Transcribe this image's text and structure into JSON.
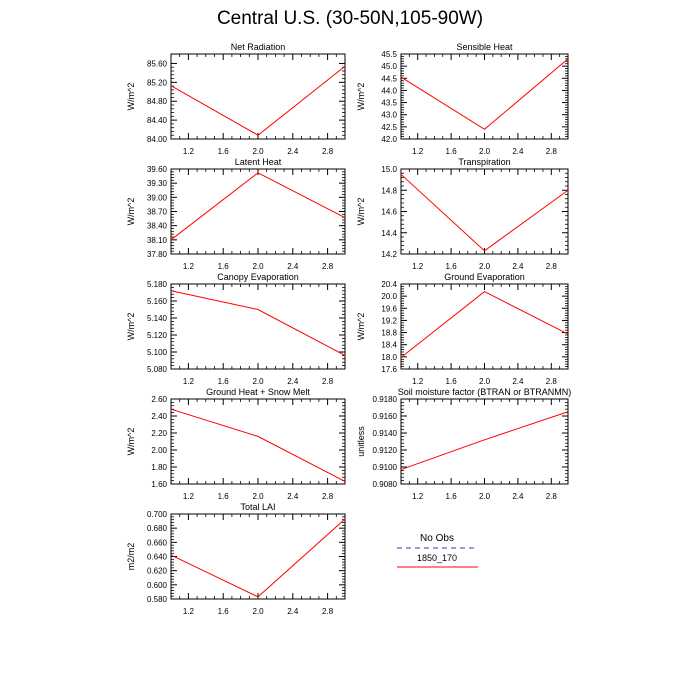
{
  "title": "Central U.S. (30-50N,105-90W)",
  "colors": {
    "model_line": "#ff0000",
    "obs_line": "#9999ee",
    "axis": "#000000"
  },
  "legend": {
    "obs_label": "No Obs",
    "model_label": "1850_170"
  },
  "chart_data": [
    {
      "type": "line",
      "title": "Net Radiation",
      "ylabel": "W/m^2",
      "x": [
        1,
        2,
        3
      ],
      "xticks": [
        "1.2",
        "1.6",
        "2.0",
        "2.4",
        "2.8"
      ],
      "xlim": [
        1,
        3
      ],
      "yticks": [
        "84.00",
        "84.40",
        "84.80",
        "85.20",
        "85.60"
      ],
      "ylim": [
        84.0,
        85.8
      ],
      "series": [
        {
          "values": [
            85.13,
            84.08,
            85.54
          ]
        }
      ]
    },
    {
      "type": "line",
      "title": "Sensible Heat",
      "ylabel": "W/m^2",
      "x": [
        1,
        2,
        3
      ],
      "xticks": [
        "1.2",
        "1.6",
        "2.0",
        "2.4",
        "2.8"
      ],
      "xlim": [
        1,
        3
      ],
      "yticks": [
        "42.0",
        "42.5",
        "43.0",
        "43.5",
        "44.0",
        "44.5",
        "45.0",
        "45.5"
      ],
      "ylim": [
        42.0,
        45.5
      ],
      "series": [
        {
          "values": [
            44.55,
            42.4,
            45.3
          ]
        }
      ]
    },
    {
      "type": "line",
      "title": "Latent Heat",
      "ylabel": "W/m^2",
      "x": [
        1,
        2,
        3
      ],
      "xticks": [
        "1.2",
        "1.6",
        "2.0",
        "2.4",
        "2.8"
      ],
      "xlim": [
        1,
        3
      ],
      "yticks": [
        "37.80",
        "38.10",
        "38.40",
        "38.70",
        "39.00",
        "39.30",
        "39.60"
      ],
      "ylim": [
        37.8,
        39.6
      ],
      "series": [
        {
          "values": [
            38.1,
            39.52,
            38.57
          ]
        }
      ]
    },
    {
      "type": "line",
      "title": "Transpiration",
      "ylabel": "W/m^2",
      "x": [
        1,
        2,
        3
      ],
      "xticks": [
        "1.2",
        "1.6",
        "2.0",
        "2.4",
        "2.8"
      ],
      "xlim": [
        1,
        3
      ],
      "yticks": [
        "14.2",
        "14.4",
        "14.6",
        "14.8",
        "15.0"
      ],
      "ylim": [
        14.2,
        15.0
      ],
      "series": [
        {
          "values": [
            14.95,
            14.23,
            14.8
          ]
        }
      ]
    },
    {
      "type": "line",
      "title": "Canopy Evaporation",
      "ylabel": "W/m^2",
      "x": [
        1,
        2,
        3
      ],
      "xticks": [
        "1.2",
        "1.6",
        "2.0",
        "2.4",
        "2.8"
      ],
      "xlim": [
        1,
        3
      ],
      "yticks": [
        "5.080",
        "5.100",
        "5.120",
        "5.140",
        "5.160",
        "5.180"
      ],
      "ylim": [
        5.08,
        5.18
      ],
      "series": [
        {
          "values": [
            5.172,
            5.15,
            5.096
          ]
        }
      ]
    },
    {
      "type": "line",
      "title": "Ground Evaporation",
      "ylabel": "W/m^2",
      "x": [
        1,
        2,
        3
      ],
      "xticks": [
        "1.2",
        "1.6",
        "2.0",
        "2.4",
        "2.8"
      ],
      "xlim": [
        1,
        3
      ],
      "yticks": [
        "17.6",
        "18.0",
        "18.4",
        "18.8",
        "19.2",
        "19.6",
        "20.0",
        "20.4"
      ],
      "ylim": [
        17.6,
        20.4
      ],
      "series": [
        {
          "values": [
            17.98,
            20.15,
            18.75
          ]
        }
      ]
    },
    {
      "type": "line",
      "title": "Ground Heat + Snow Melt",
      "ylabel": "W/m^2",
      "x": [
        1,
        2,
        3
      ],
      "xticks": [
        "1.2",
        "1.6",
        "2.0",
        "2.4",
        "2.8"
      ],
      "xlim": [
        1,
        3
      ],
      "yticks": [
        "1.60",
        "1.80",
        "2.00",
        "2.20",
        "2.40",
        "2.60"
      ],
      "ylim": [
        1.6,
        2.6
      ],
      "series": [
        {
          "values": [
            2.48,
            2.16,
            1.63
          ]
        }
      ]
    },
    {
      "type": "line",
      "title": "Soil moisture factor (BTRAN or BTRANMN)",
      "ylabel": "unitless",
      "x": [
        1,
        2,
        3
      ],
      "xticks": [
        "1.2",
        "1.6",
        "2.0",
        "2.4",
        "2.8"
      ],
      "xlim": [
        1,
        3
      ],
      "yticks": [
        "0.9080",
        "0.9100",
        "0.9120",
        "0.9140",
        "0.9160",
        "0.9180"
      ],
      "ylim": [
        0.908,
        0.918
      ],
      "series": [
        {
          "values": [
            0.9097,
            0.9132,
            0.9165
          ]
        }
      ]
    },
    {
      "type": "line",
      "title": "Total LAI",
      "ylabel": "m2/m2",
      "x": [
        1,
        2,
        3
      ],
      "xticks": [
        "1.2",
        "1.6",
        "2.0",
        "2.4",
        "2.8"
      ],
      "xlim": [
        1,
        3
      ],
      "yticks": [
        "0.580",
        "0.600",
        "0.620",
        "0.640",
        "0.660",
        "0.680",
        "0.700"
      ],
      "ylim": [
        0.58,
        0.7
      ],
      "series": [
        {
          "values": [
            0.642,
            0.583,
            0.693
          ]
        }
      ]
    }
  ]
}
